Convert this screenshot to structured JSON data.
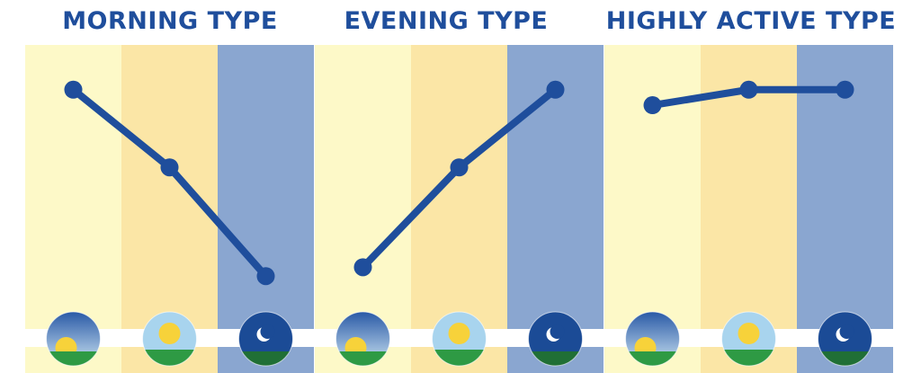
{
  "colors": {
    "morning_band": "#fdf9c8",
    "midday_band": "#fbe6a6",
    "evening_band": "#8aa6d0",
    "line": "#1f4e9c",
    "title": "#1f4e9c",
    "sky_morning_top": "#2a5aa6",
    "sky_morning_bottom": "#cfe6f4",
    "sky_midday": "#a8d4ee",
    "sky_night": "#1b4b96",
    "sun": "#f7d23a",
    "ground": "#2e9a44",
    "ground_night": "#206f36",
    "moon": "#ffffff"
  },
  "chart_data": [
    {
      "type": "line",
      "title": "MORNING TYPE",
      "categories": [
        "morning",
        "midday",
        "evening"
      ],
      "category_icons": [
        "sunrise-icon",
        "midday-sun-icon",
        "moon-night-icon"
      ],
      "series": [
        {
          "values": [
            0.92,
            0.57,
            0.08
          ]
        }
      ],
      "ylim": [
        0,
        1
      ]
    },
    {
      "type": "line",
      "title": "EVENING TYPE",
      "categories": [
        "morning",
        "midday",
        "evening"
      ],
      "category_icons": [
        "sunrise-icon",
        "midday-sun-icon",
        "moon-night-icon"
      ],
      "series": [
        {
          "values": [
            0.12,
            0.57,
            0.92
          ]
        }
      ],
      "ylim": [
        0,
        1
      ]
    },
    {
      "type": "line",
      "title": "HIGHLY ACTIVE TYPE",
      "categories": [
        "morning",
        "midday",
        "evening"
      ],
      "category_icons": [
        "sunrise-icon",
        "midday-sun-icon",
        "moon-night-icon"
      ],
      "series": [
        {
          "values": [
            0.85,
            0.92,
            0.92
          ]
        }
      ],
      "ylim": [
        0,
        1
      ]
    }
  ]
}
